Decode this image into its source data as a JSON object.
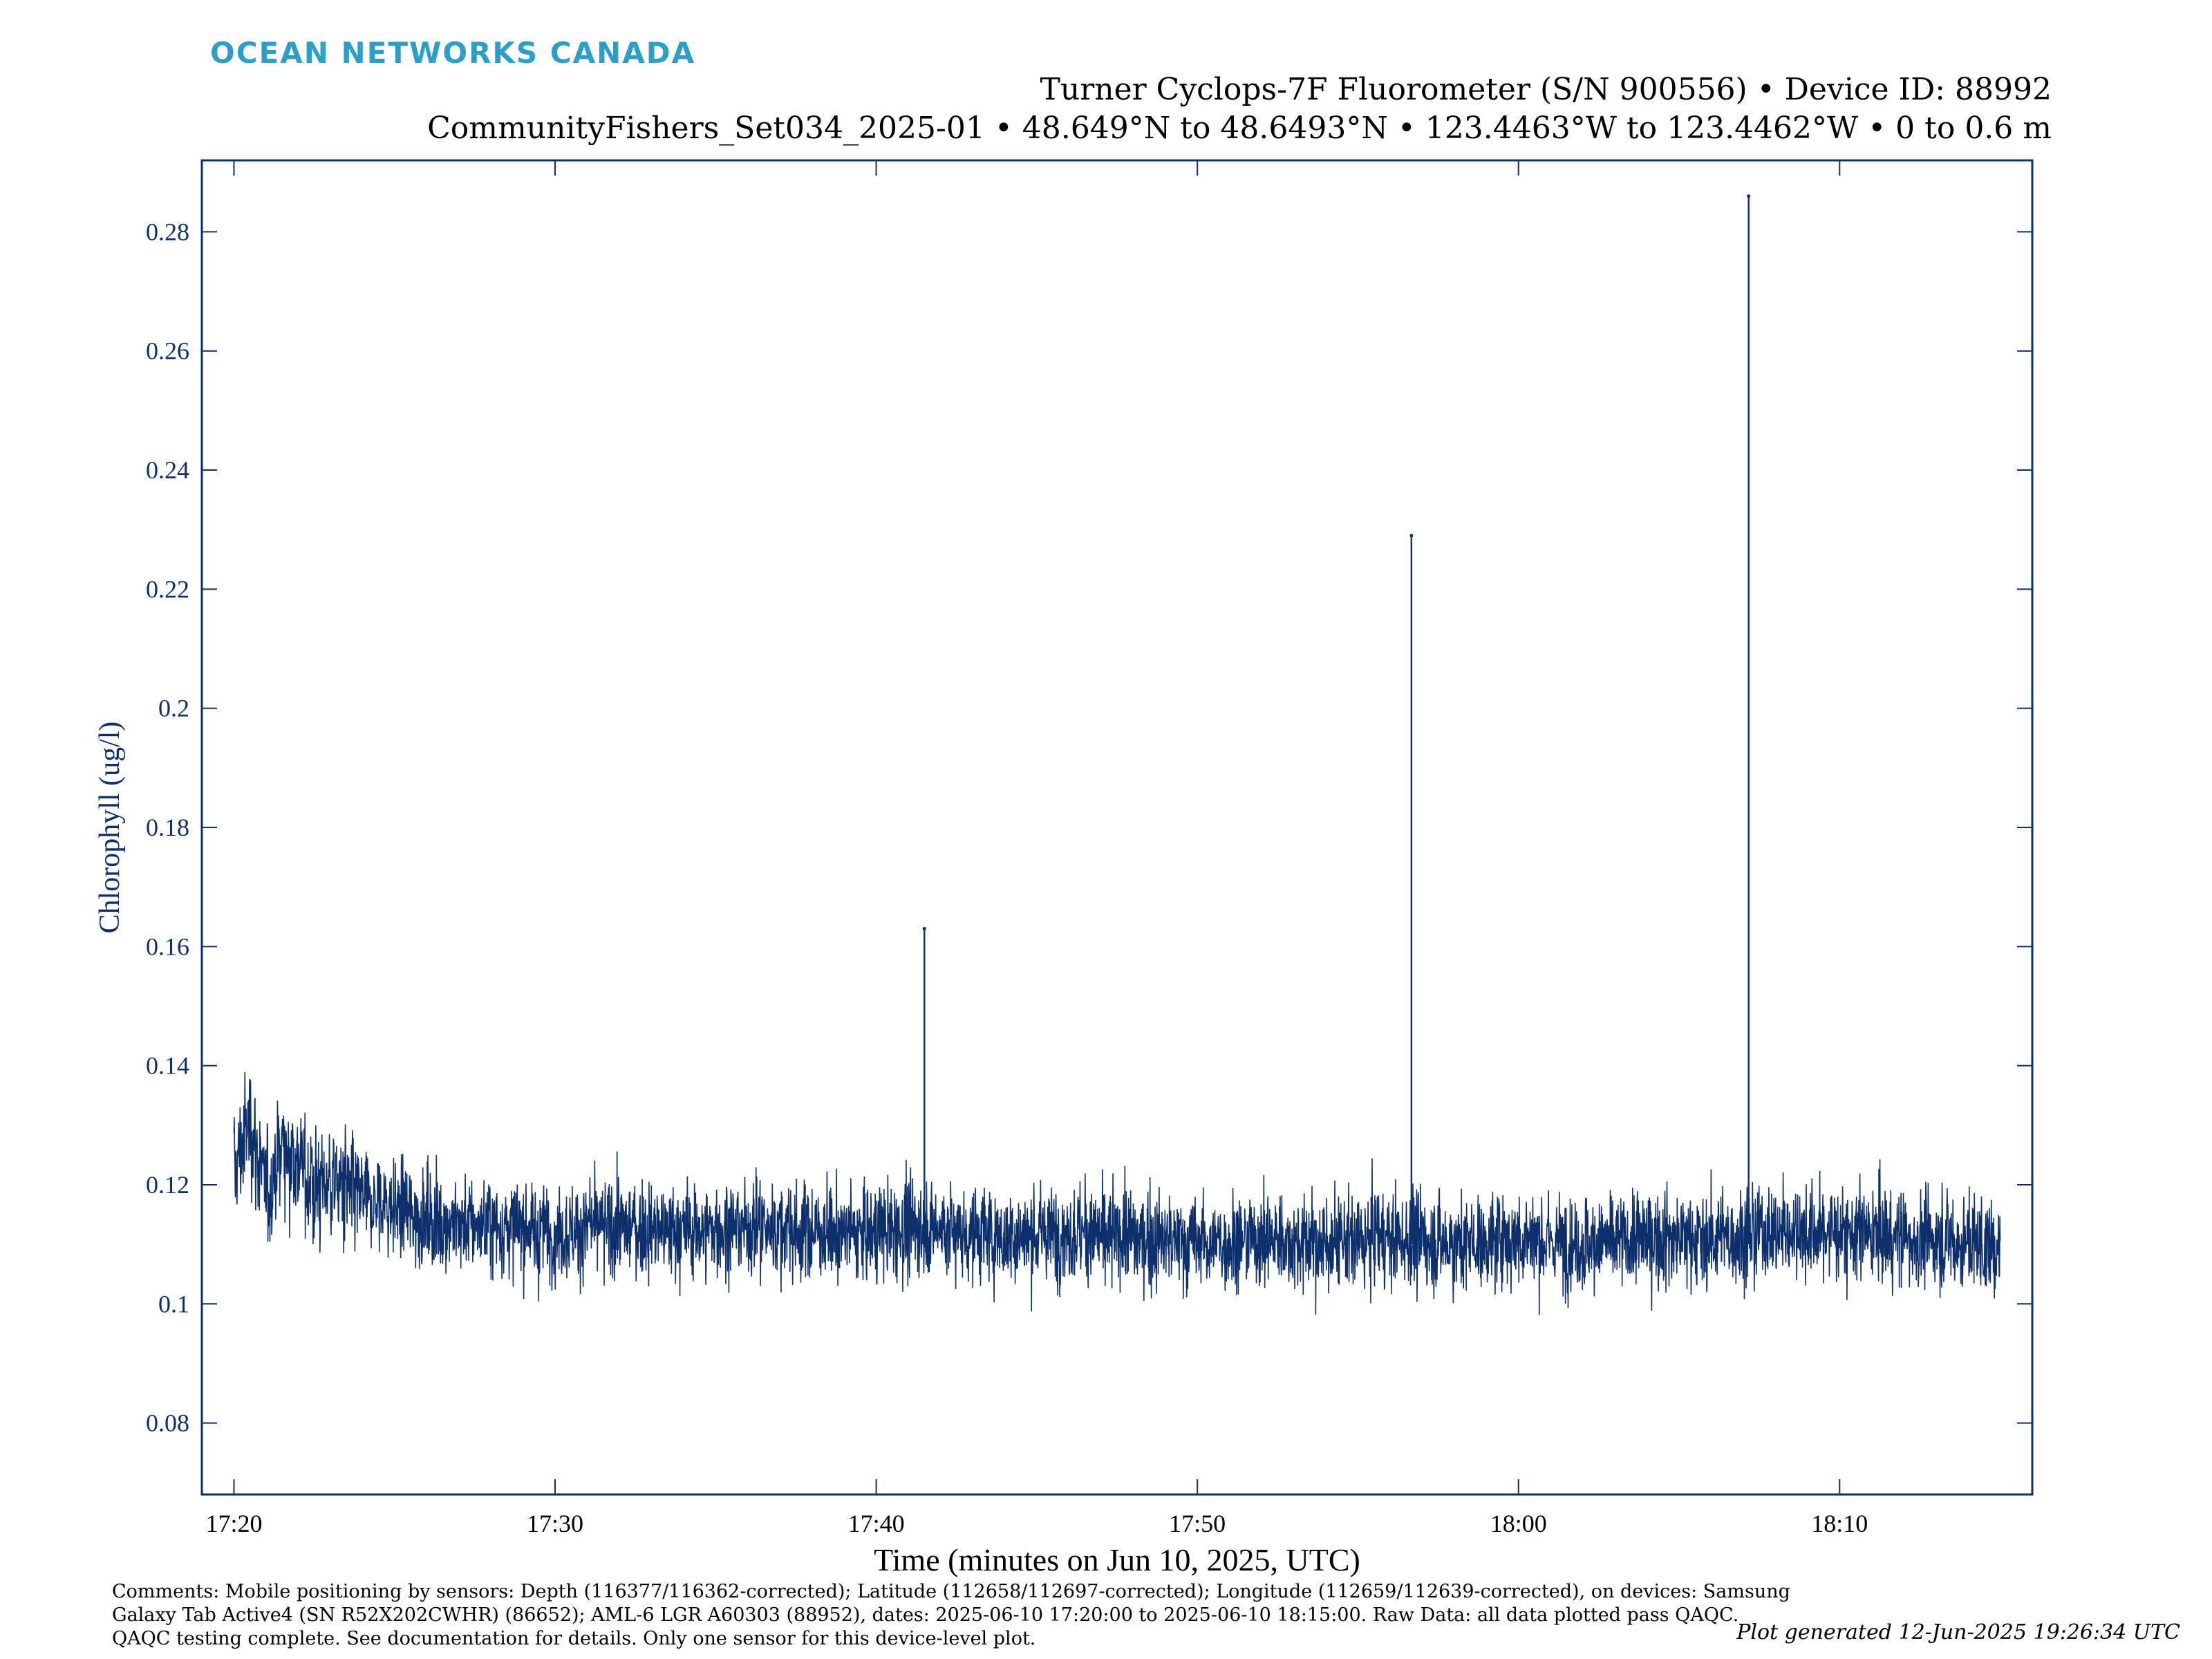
{
  "header": {
    "logo_text": "OCEAN NETWORKS CANADA",
    "title_line1": "Turner Cyclops-7F Fluorometer (S/N 900556) • Device ID: 88992",
    "title_line2": "CommunityFishers_Set034_2025-01 • 48.649°N to 48.6493°N • 123.4463°W to 123.4462°W • 0 to 0.6 m"
  },
  "chart_data": {
    "type": "line",
    "xlabel": "Time (minutes on Jun 10, 2025, UTC)",
    "ylabel": "Chlorophyll (ug/l)",
    "x_range": [
      "17:19:00",
      "18:16:00"
    ],
    "ylim": [
      0.068,
      0.292
    ],
    "x_ticks": [
      "17:20",
      "17:30",
      "17:40",
      "17:50",
      "18:00",
      "18:10"
    ],
    "y_ticks": [
      0.08,
      0.1,
      0.12,
      0.14,
      0.16,
      0.18,
      0.2,
      0.22,
      0.24,
      0.26,
      0.28
    ],
    "y_tick_labels": [
      "0.08",
      "0.1",
      "0.12",
      "0.14",
      "0.16",
      "0.18",
      "0.2",
      "0.22",
      "0.24",
      "0.26",
      "0.28"
    ],
    "series": [
      {
        "color": "#0d2f6b",
        "x_start": "17:20:00",
        "x_end": "18:15:00",
        "points": [
          [
            "17:20:00",
            0.122
          ],
          [
            "17:20:30",
            0.131
          ],
          [
            "17:21:00",
            0.118
          ],
          [
            "17:21:30",
            0.127
          ],
          [
            "17:22:00",
            0.124
          ],
          [
            "17:22:30",
            0.119
          ],
          [
            "17:23:00",
            0.121
          ],
          [
            "17:24:00",
            0.117
          ],
          [
            "17:25:00",
            0.116
          ],
          [
            "17:26:00",
            0.114
          ],
          [
            "17:28:00",
            0.113
          ],
          [
            "17:30:00",
            0.112
          ],
          [
            "17:32:00",
            0.113
          ],
          [
            "17:34:00",
            0.112
          ],
          [
            "17:36:00",
            0.113
          ],
          [
            "17:38:00",
            0.112
          ],
          [
            "17:40:00",
            0.112
          ],
          [
            "17:41:30",
            0.113
          ],
          [
            "17:44:00",
            0.111
          ],
          [
            "17:46:00",
            0.112
          ],
          [
            "17:48:00",
            0.111
          ],
          [
            "17:50:00",
            0.11
          ],
          [
            "17:52:00",
            0.111
          ],
          [
            "17:54:00",
            0.11
          ],
          [
            "17:56:00",
            0.111
          ],
          [
            "17:58:00",
            0.11
          ],
          [
            "18:00:00",
            0.111
          ],
          [
            "18:02:00",
            0.11
          ],
          [
            "18:04:00",
            0.111
          ],
          [
            "18:06:00",
            0.111
          ],
          [
            "18:08:00",
            0.112
          ],
          [
            "18:10:00",
            0.112
          ],
          [
            "18:12:00",
            0.111
          ],
          [
            "18:14:00",
            0.11
          ],
          [
            "18:15:00",
            0.109
          ]
        ],
        "noise_band_low": 0.078,
        "noise_band_high": 0.148
      }
    ],
    "spikes": [
      {
        "x": "17:41:30",
        "y": 0.163
      },
      {
        "x": "17:56:40",
        "y": 0.229
      },
      {
        "x": "18:07:10",
        "y": 0.286
      }
    ],
    "grid": false
  },
  "footer": {
    "comments": "Comments: Mobile positioning by sensors: Depth (116377/116362-corrected); Latitude (112658/112697-corrected); Longitude (112659/112639-corrected), on devices: Samsung Galaxy Tab Active4 (SN R52X202CWHR) (86652); AML-6 LGR A60303 (88952), dates: 2025-06-10 17:20:00 to 2025-06-10 18:15:00. Raw Data: all data plotted pass QAQC. QAQC testing complete. See documentation for details. Only one sensor for this device-level plot.",
    "generated": "Plot generated 12-Jun-2025 19:26:34 UTC"
  }
}
